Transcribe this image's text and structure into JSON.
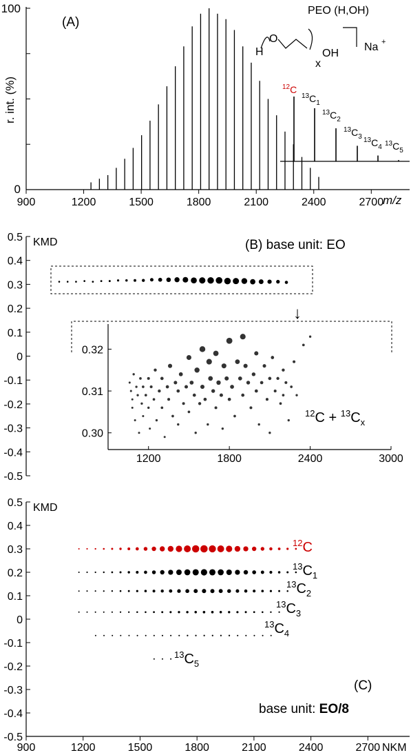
{
  "colors": {
    "ink": "#000000",
    "c12": "#cc0000",
    "inset_dot": "#333333"
  },
  "panels": {
    "A": {
      "label": "(A)",
      "ylabel": "r. int. (%)",
      "xlabel": "m/z",
      "y_top": "100",
      "y_zero": "0",
      "structure_name": "PEO (H,OH)",
      "na": "Na",
      "na_charge": "+",
      "h": "H",
      "o": "O",
      "oh": "OH",
      "x_sub": "x"
    },
    "B": {
      "title": "(B) base unit: EO",
      "ylabel": "KMD",
      "inset_annot_main": "C + ",
      "inset_annot_sup1": "12",
      "inset_annot_sup2": "13",
      "inset_annot_sub": "x",
      "arrow": "↓"
    },
    "C": {
      "label": "(C)",
      "ylabel": "KMD",
      "xlabel": "NKM",
      "base_prefix": "base unit: ",
      "base_bold": "EO/8"
    }
  },
  "isotope_labels": {
    "c12": {
      "sup": "12",
      "main": "C",
      "sub": ""
    },
    "c13_1": {
      "sup": "13",
      "main": "C",
      "sub": "1"
    },
    "c13_2": {
      "sup": "13",
      "main": "C",
      "sub": "2"
    },
    "c13_3": {
      "sup": "13",
      "main": "C",
      "sub": "3"
    },
    "c13_4": {
      "sup": "13",
      "main": "C",
      "sub": "4"
    },
    "c13_5": {
      "sup": "13",
      "main": "C",
      "sub": "5"
    }
  },
  "chart_data": [
    {
      "panel": "A",
      "type": "bar",
      "xlabel": "m/z",
      "ylabel": "r. int. (%)",
      "xlim": [
        900,
        2900
      ],
      "ylim": [
        0,
        100
      ],
      "xticks": [
        "900",
        "1200",
        "1500",
        "1800",
        "2100",
        "2400",
        "2700"
      ],
      "x": [
        1238,
        1282,
        1326,
        1370,
        1414,
        1458,
        1502,
        1546,
        1590,
        1634,
        1678,
        1722,
        1766,
        1810,
        1854,
        1898,
        1942,
        1986,
        2030,
        2074,
        2118,
        2162,
        2206,
        2250,
        2294,
        2338,
        2382,
        2426
      ],
      "values": [
        4,
        6,
        8,
        12,
        17,
        23,
        30,
        38,
        47,
        57,
        68,
        79,
        90,
        97,
        100,
        97,
        94,
        88,
        79,
        70,
        60,
        50,
        41,
        32,
        25,
        18,
        12,
        7
      ],
      "inset": {
        "type": "bar",
        "categories": [
          "12C",
          "13C1",
          "13C2",
          "13C3",
          "13C4",
          "13C5"
        ],
        "values": [
          100,
          82,
          51,
          24,
          9,
          2
        ]
      }
    },
    {
      "panel": "B",
      "type": "scatter",
      "ylabel": "KMD",
      "ylim": [
        -0.5,
        0.5
      ],
      "yticks": [
        "0.5",
        "0.4",
        "0.3",
        "0.2",
        "0.1",
        "0",
        "-0.1",
        "-0.2",
        "-0.3",
        "-0.4",
        "-0.5"
      ],
      "x": [
        1150,
        1194,
        1238,
        1282,
        1326,
        1370,
        1414,
        1458,
        1502,
        1546,
        1590,
        1634,
        1678,
        1722,
        1766,
        1810,
        1854,
        1898,
        1942,
        1986,
        2030,
        2074,
        2118,
        2162,
        2206,
        2250,
        2294,
        2338
      ],
      "y": [
        0.311,
        0.311,
        0.311,
        0.312,
        0.311,
        0.312,
        0.312,
        0.313,
        0.313,
        0.313,
        0.313,
        0.314,
        0.314,
        0.314,
        0.314,
        0.314,
        0.313,
        0.313,
        0.313,
        0.313,
        0.312,
        0.312,
        0.312,
        0.311,
        0.311,
        0.311,
        0.311,
        0.31
      ],
      "sizes": [
        2,
        2,
        3,
        4,
        5,
        6,
        8,
        11,
        15,
        21,
        28,
        37,
        47,
        58,
        69,
        79,
        87,
        94,
        98,
        100,
        98,
        92,
        84,
        74,
        63,
        52,
        41,
        31
      ],
      "inset": {
        "type": "scatter",
        "title": "12C + 13Cx",
        "xlim": [
          900,
          3000
        ],
        "ylim": [
          0.296,
          0.326
        ],
        "xticks": [
          "1200",
          "1800",
          "2400",
          "3000"
        ],
        "yticks": [
          "0.32",
          "0.31",
          "0.30"
        ],
        "x": [
          1060,
          1070,
          1080,
          1080,
          1090,
          1100,
          1110,
          1120,
          1130,
          1140,
          1150,
          1160,
          1160,
          1180,
          1200,
          1200,
          1210,
          1220,
          1240,
          1250,
          1260,
          1280,
          1300,
          1300,
          1320,
          1340,
          1350,
          1360,
          1380,
          1400,
          1420,
          1420,
          1440,
          1460,
          1480,
          1500,
          1500,
          1520,
          1540,
          1550,
          1560,
          1580,
          1600,
          1600,
          1620,
          1640,
          1650,
          1660,
          1680,
          1700,
          1700,
          1720,
          1740,
          1750,
          1760,
          1780,
          1800,
          1800,
          1820,
          1840,
          1860,
          1880,
          1900,
          1900,
          1920,
          1940,
          1960,
          1980,
          2000,
          2000,
          2020,
          2040,
          2060,
          2080,
          2100,
          2100,
          2120,
          2140,
          2160,
          2180,
          2200,
          2200,
          2220,
          2240,
          2260,
          2280,
          2300,
          2350,
          2400
        ],
        "y": [
          0.312,
          0.31,
          0.308,
          0.306,
          0.314,
          0.303,
          0.311,
          0.309,
          0.3,
          0.313,
          0.307,
          0.311,
          0.304,
          0.309,
          0.313,
          0.306,
          0.301,
          0.311,
          0.308,
          0.315,
          0.303,
          0.31,
          0.313,
          0.306,
          0.299,
          0.311,
          0.308,
          0.316,
          0.304,
          0.312,
          0.31,
          0.302,
          0.314,
          0.307,
          0.311,
          0.318,
          0.305,
          0.312,
          0.309,
          0.3,
          0.315,
          0.307,
          0.32,
          0.311,
          0.308,
          0.302,
          0.317,
          0.313,
          0.31,
          0.319,
          0.306,
          0.312,
          0.309,
          0.301,
          0.316,
          0.313,
          0.308,
          0.322,
          0.311,
          0.304,
          0.317,
          0.313,
          0.323,
          0.309,
          0.316,
          0.312,
          0.306,
          0.314,
          0.31,
          0.319,
          0.302,
          0.312,
          0.316,
          0.308,
          0.313,
          0.3,
          0.318,
          0.31,
          0.313,
          0.307,
          0.315,
          0.309,
          0.312,
          0.303,
          0.311,
          0.317,
          0.309,
          0.321,
          0.323
        ],
        "sizes": [
          15,
          15,
          15,
          15,
          20,
          15,
          20,
          20,
          15,
          25,
          20,
          25,
          15,
          25,
          30,
          20,
          15,
          30,
          25,
          35,
          20,
          35,
          40,
          25,
          15,
          40,
          30,
          60,
          25,
          45,
          40,
          20,
          55,
          30,
          45,
          75,
          25,
          55,
          40,
          20,
          80,
          35,
          95,
          60,
          40,
          20,
          90,
          70,
          50,
          85,
          30,
          65,
          45,
          20,
          75,
          60,
          40,
          100,
          55,
          25,
          70,
          55,
          90,
          40,
          60,
          50,
          30,
          50,
          40,
          60,
          20,
          40,
          45,
          30,
          40,
          20,
          40,
          30,
          35,
          25,
          35,
          25,
          30,
          20,
          25,
          30,
          20,
          25,
          20
        ]
      }
    },
    {
      "panel": "C",
      "type": "scatter",
      "xlabel": "NKM",
      "ylabel": "KMD",
      "xlim": [
        900,
        2920
      ],
      "ylim": [
        -0.5,
        0.5
      ],
      "xticks": [
        "900",
        "1200",
        "1500",
        "1800",
        "2100",
        "2400",
        "2700"
      ],
      "yticks": [
        "0.5",
        "0.4",
        "0.3",
        "0.2",
        "0.1",
        "0",
        "-0.1",
        "-0.2",
        "-0.3",
        "-0.4",
        "-0.5"
      ],
      "series": [
        {
          "name": "12C",
          "y": 0.3,
          "color": "#cc0000",
          "x": [
            1178,
            1221,
            1265,
            1309,
            1353,
            1397,
            1441,
            1485,
            1529,
            1573,
            1617,
            1661,
            1705,
            1749,
            1793,
            1837,
            1881,
            1925,
            1969,
            2013,
            2057,
            2101,
            2145,
            2189,
            2233,
            2277,
            2321,
            2365
          ],
          "sizes": [
            3,
            4,
            6,
            9,
            13,
            18,
            25,
            33,
            42,
            53,
            64,
            75,
            85,
            93,
            99,
            100,
            97,
            92,
            84,
            74,
            63,
            52,
            41,
            31,
            23,
            16,
            10,
            6
          ]
        },
        {
          "name": "13C1",
          "y": 0.2,
          "color": "#000000",
          "x": [
            1178,
            1221,
            1265,
            1309,
            1353,
            1397,
            1441,
            1485,
            1529,
            1573,
            1617,
            1661,
            1705,
            1749,
            1793,
            1837,
            1881,
            1925,
            1969,
            2013,
            2057,
            2101,
            2145,
            2189,
            2233,
            2277,
            2321
          ],
          "sizes": [
            3,
            4,
            5,
            7,
            10,
            14,
            19,
            25,
            33,
            42,
            52,
            62,
            70,
            78,
            82,
            84,
            82,
            78,
            71,
            62,
            53,
            44,
            35,
            27,
            20,
            14,
            9
          ]
        },
        {
          "name": "13C2",
          "y": 0.12,
          "color": "#000000",
          "x": [
            1178,
            1221,
            1265,
            1309,
            1353,
            1397,
            1441,
            1485,
            1529,
            1573,
            1617,
            1661,
            1705,
            1749,
            1793,
            1837,
            1881,
            1925,
            1969,
            2013,
            2057,
            2101,
            2145,
            2189,
            2233,
            2277
          ],
          "sizes": [
            2,
            3,
            4,
            5,
            7,
            9,
            12,
            16,
            20,
            25,
            30,
            35,
            40,
            44,
            47,
            49,
            48,
            46,
            42,
            37,
            32,
            27,
            21,
            16,
            12,
            8
          ]
        },
        {
          "name": "13C3",
          "y": 0.03,
          "color": "#000000",
          "x": [
            1178,
            1221,
            1265,
            1309,
            1353,
            1397,
            1441,
            1485,
            1529,
            1573,
            1617,
            1661,
            1705,
            1749,
            1793,
            1837,
            1881,
            1925,
            1969,
            2013,
            2057,
            2101,
            2145,
            2189,
            2233
          ],
          "sizes": [
            2,
            2,
            3,
            3,
            4,
            5,
            6,
            8,
            9,
            11,
            13,
            15,
            17,
            19,
            20,
            21,
            21,
            20,
            18,
            16,
            14,
            11,
            9,
            7,
            5
          ]
        },
        {
          "name": "13C4",
          "y": -0.07,
          "color": "#000000",
          "x": [
            1266,
            1310,
            1354,
            1398,
            1442,
            1486,
            1530,
            1574,
            1618,
            1662,
            1706,
            1750,
            1794,
            1838,
            1882,
            1926,
            1970,
            2014,
            2058,
            2102,
            2146,
            2190
          ],
          "sizes": [
            2,
            2,
            2,
            2,
            2,
            3,
            3,
            3,
            4,
            4,
            4,
            5,
            5,
            5,
            5,
            5,
            5,
            4,
            4,
            3,
            3,
            2
          ]
        },
        {
          "name": "13C5",
          "y": -0.17,
          "color": "#000000",
          "x": [
            1574,
            1618,
            1662
          ],
          "sizes": [
            2,
            2,
            2
          ]
        }
      ]
    }
  ]
}
